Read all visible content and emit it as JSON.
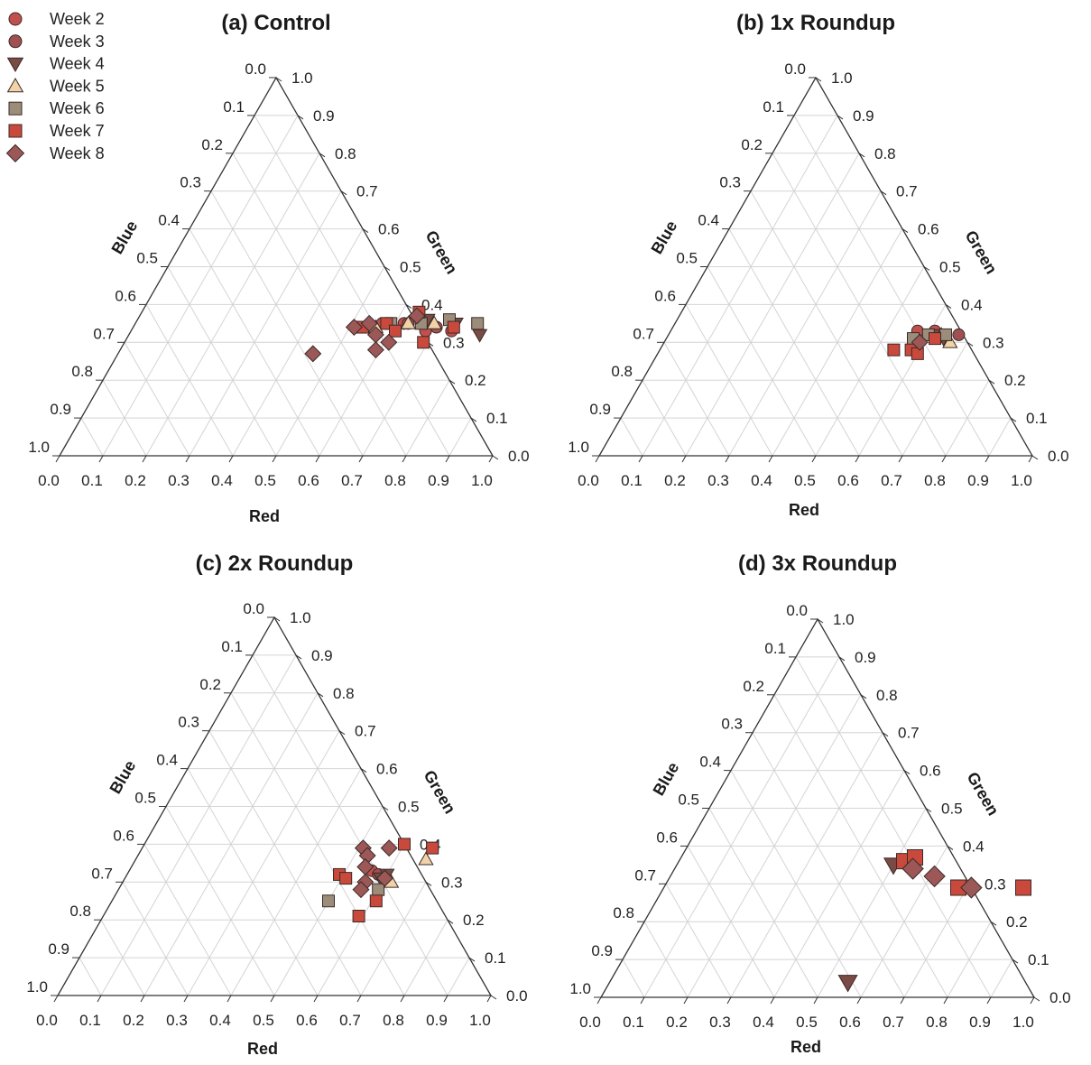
{
  "legend": {
    "position": "top-left",
    "items": [
      {
        "label": "Week 2",
        "marker": "circle",
        "color": "#c0504d"
      },
      {
        "label": "Week 3",
        "marker": "circle",
        "color": "#a05050"
      },
      {
        "label": "Week 4",
        "marker": "triangle-down",
        "color": "#7a4a44"
      },
      {
        "label": "Week 5",
        "marker": "triangle-up",
        "color": "#f2d3a8"
      },
      {
        "label": "Week 6",
        "marker": "square",
        "color": "#9b8d7a"
      },
      {
        "label": "Week 7",
        "marker": "square",
        "color": "#c94a3c"
      },
      {
        "label": "Week 8",
        "marker": "diamond",
        "color": "#9c5757"
      }
    ]
  },
  "chart_data": [
    {
      "type": "scatter",
      "layout": "ternary",
      "title": "(a) Control",
      "axes": {
        "bottom": "Red",
        "left": "Blue",
        "right": "Green"
      },
      "ticks": [
        "0.0",
        "0.1",
        "0.2",
        "0.3",
        "0.4",
        "0.5",
        "0.6",
        "0.7",
        "0.8",
        "0.9",
        "1.0"
      ],
      "grid": true,
      "series": [
        {
          "name": "Week 2",
          "points": [
            [
              0.52,
              0.34
            ],
            [
              0.57,
              0.35
            ],
            [
              0.62,
              0.35
            ],
            [
              0.68,
              0.33
            ],
            [
              0.74,
              0.33
            ]
          ]
        },
        {
          "name": "Week 3",
          "points": [
            [
              0.55,
              0.34
            ],
            [
              0.63,
              0.35
            ],
            [
              0.7,
              0.34
            ]
          ]
        },
        {
          "name": "Week 4",
          "points": [
            [
              0.67,
              0.36
            ],
            [
              0.74,
              0.35
            ],
            [
              0.81,
              0.32
            ]
          ]
        },
        {
          "name": "Week 5",
          "points": [
            [
              0.56,
              0.34
            ],
            [
              0.63,
              0.35
            ],
            [
              0.69,
              0.35
            ]
          ]
        },
        {
          "name": "Week 6",
          "points": [
            [
              0.59,
              0.35
            ],
            [
              0.66,
              0.35
            ],
            [
              0.72,
              0.36
            ],
            [
              0.79,
              0.35
            ]
          ]
        },
        {
          "name": "Week 7",
          "points": [
            [
              0.53,
              0.34
            ],
            [
              0.58,
              0.35
            ],
            [
              0.61,
              0.33
            ],
            [
              0.64,
              0.38
            ],
            [
              0.69,
              0.3
            ],
            [
              0.74,
              0.34
            ]
          ]
        },
        {
          "name": "Week 8",
          "points": [
            [
              0.45,
              0.27
            ],
            [
              0.51,
              0.34
            ],
            [
              0.54,
              0.35
            ],
            [
              0.57,
              0.32
            ],
            [
              0.59,
              0.28
            ],
            [
              0.61,
              0.3
            ],
            [
              0.64,
              0.37
            ]
          ]
        }
      ]
    },
    {
      "type": "scatter",
      "layout": "ternary",
      "title": "(b) 1x Roundup",
      "axes": {
        "bottom": "Red",
        "left": "Blue",
        "right": "Green"
      },
      "ticks": [
        "0.0",
        "0.1",
        "0.2",
        "0.3",
        "0.4",
        "0.5",
        "0.6",
        "0.7",
        "0.8",
        "0.9",
        "1.0"
      ],
      "grid": true,
      "series": [
        {
          "name": "Week 2",
          "points": [
            [
              0.57,
              0.33
            ],
            [
              0.61,
              0.33
            ]
          ]
        },
        {
          "name": "Week 3",
          "points": [
            [
              0.67,
              0.32
            ]
          ]
        },
        {
          "name": "Week 4",
          "points": [
            [
              0.62,
              0.32
            ],
            [
              0.64,
              0.31
            ]
          ]
        },
        {
          "name": "Week 5",
          "points": [
            [
              0.63,
              0.32
            ],
            [
              0.66,
              0.3
            ]
          ]
        },
        {
          "name": "Week 6",
          "points": [
            [
              0.57,
              0.31
            ],
            [
              0.6,
              0.32
            ],
            [
              0.64,
              0.32
            ]
          ]
        },
        {
          "name": "Week 7",
          "points": [
            [
              0.54,
              0.28
            ],
            [
              0.58,
              0.28
            ],
            [
              0.6,
              0.27
            ],
            [
              0.62,
              0.31
            ]
          ]
        },
        {
          "name": "Week 8",
          "points": [
            [
              0.59,
              0.3
            ]
          ]
        }
      ]
    },
    {
      "type": "scatter",
      "layout": "ternary",
      "title": "(c) 2x Roundup",
      "axes": {
        "bottom": "Red",
        "left": "Blue",
        "right": "Green"
      },
      "ticks": [
        "0.0",
        "0.1",
        "0.2",
        "0.3",
        "0.4",
        "0.5",
        "0.6",
        "0.7",
        "0.8",
        "0.9",
        "1.0"
      ],
      "grid": true,
      "series": [
        {
          "name": "Week 2",
          "points": [
            [
              0.56,
              0.33
            ]
          ]
        },
        {
          "name": "Week 3",
          "points": [
            [
              0.58,
              0.32
            ]
          ]
        },
        {
          "name": "Week 4",
          "points": [
            [
              0.59,
              0.31
            ],
            [
              0.6,
              0.32
            ]
          ]
        },
        {
          "name": "Week 5",
          "points": [
            [
              0.62,
              0.3
            ],
            [
              0.67,
              0.36
            ]
          ]
        },
        {
          "name": "Week 6",
          "points": [
            [
              0.5,
              0.25
            ],
            [
              0.6,
              0.28
            ]
          ]
        },
        {
          "name": "Week 7",
          "points": [
            [
              0.49,
              0.32
            ],
            [
              0.51,
              0.31
            ],
            [
              0.6,
              0.4
            ],
            [
              0.67,
              0.39
            ],
            [
              0.61,
              0.25
            ],
            [
              0.59,
              0.21
            ]
          ]
        },
        {
          "name": "Week 8",
          "points": [
            [
              0.51,
              0.39
            ],
            [
              0.53,
              0.37
            ],
            [
              0.54,
              0.34
            ],
            [
              0.57,
              0.39
            ],
            [
              0.56,
              0.3
            ],
            [
              0.6,
              0.31
            ],
            [
              0.56,
              0.28
            ]
          ]
        }
      ]
    },
    {
      "type": "scatter",
      "layout": "ternary",
      "title": "(d) 3x Roundup",
      "axes": {
        "bottom": "Red",
        "left": "Blue",
        "right": "Green"
      },
      "ticks": [
        "0.0",
        "0.1",
        "0.2",
        "0.3",
        "0.4",
        "0.5",
        "0.6",
        "0.7",
        "0.8",
        "0.9",
        "1.0"
      ],
      "grid": true,
      "series": [
        {
          "name": "Week 4",
          "points": [
            [
              0.5,
              0.35
            ],
            [
              0.55,
              0.04
            ]
          ]
        },
        {
          "name": "Week 7",
          "points": [
            [
              0.52,
              0.36
            ],
            [
              0.54,
              0.37
            ],
            [
              0.68,
              0.29
            ],
            [
              0.83,
              0.29
            ]
          ]
        },
        {
          "name": "Week 8",
          "points": [
            [
              0.55,
              0.34
            ],
            [
              0.61,
              0.32
            ],
            [
              0.71,
              0.29
            ]
          ]
        }
      ]
    }
  ]
}
